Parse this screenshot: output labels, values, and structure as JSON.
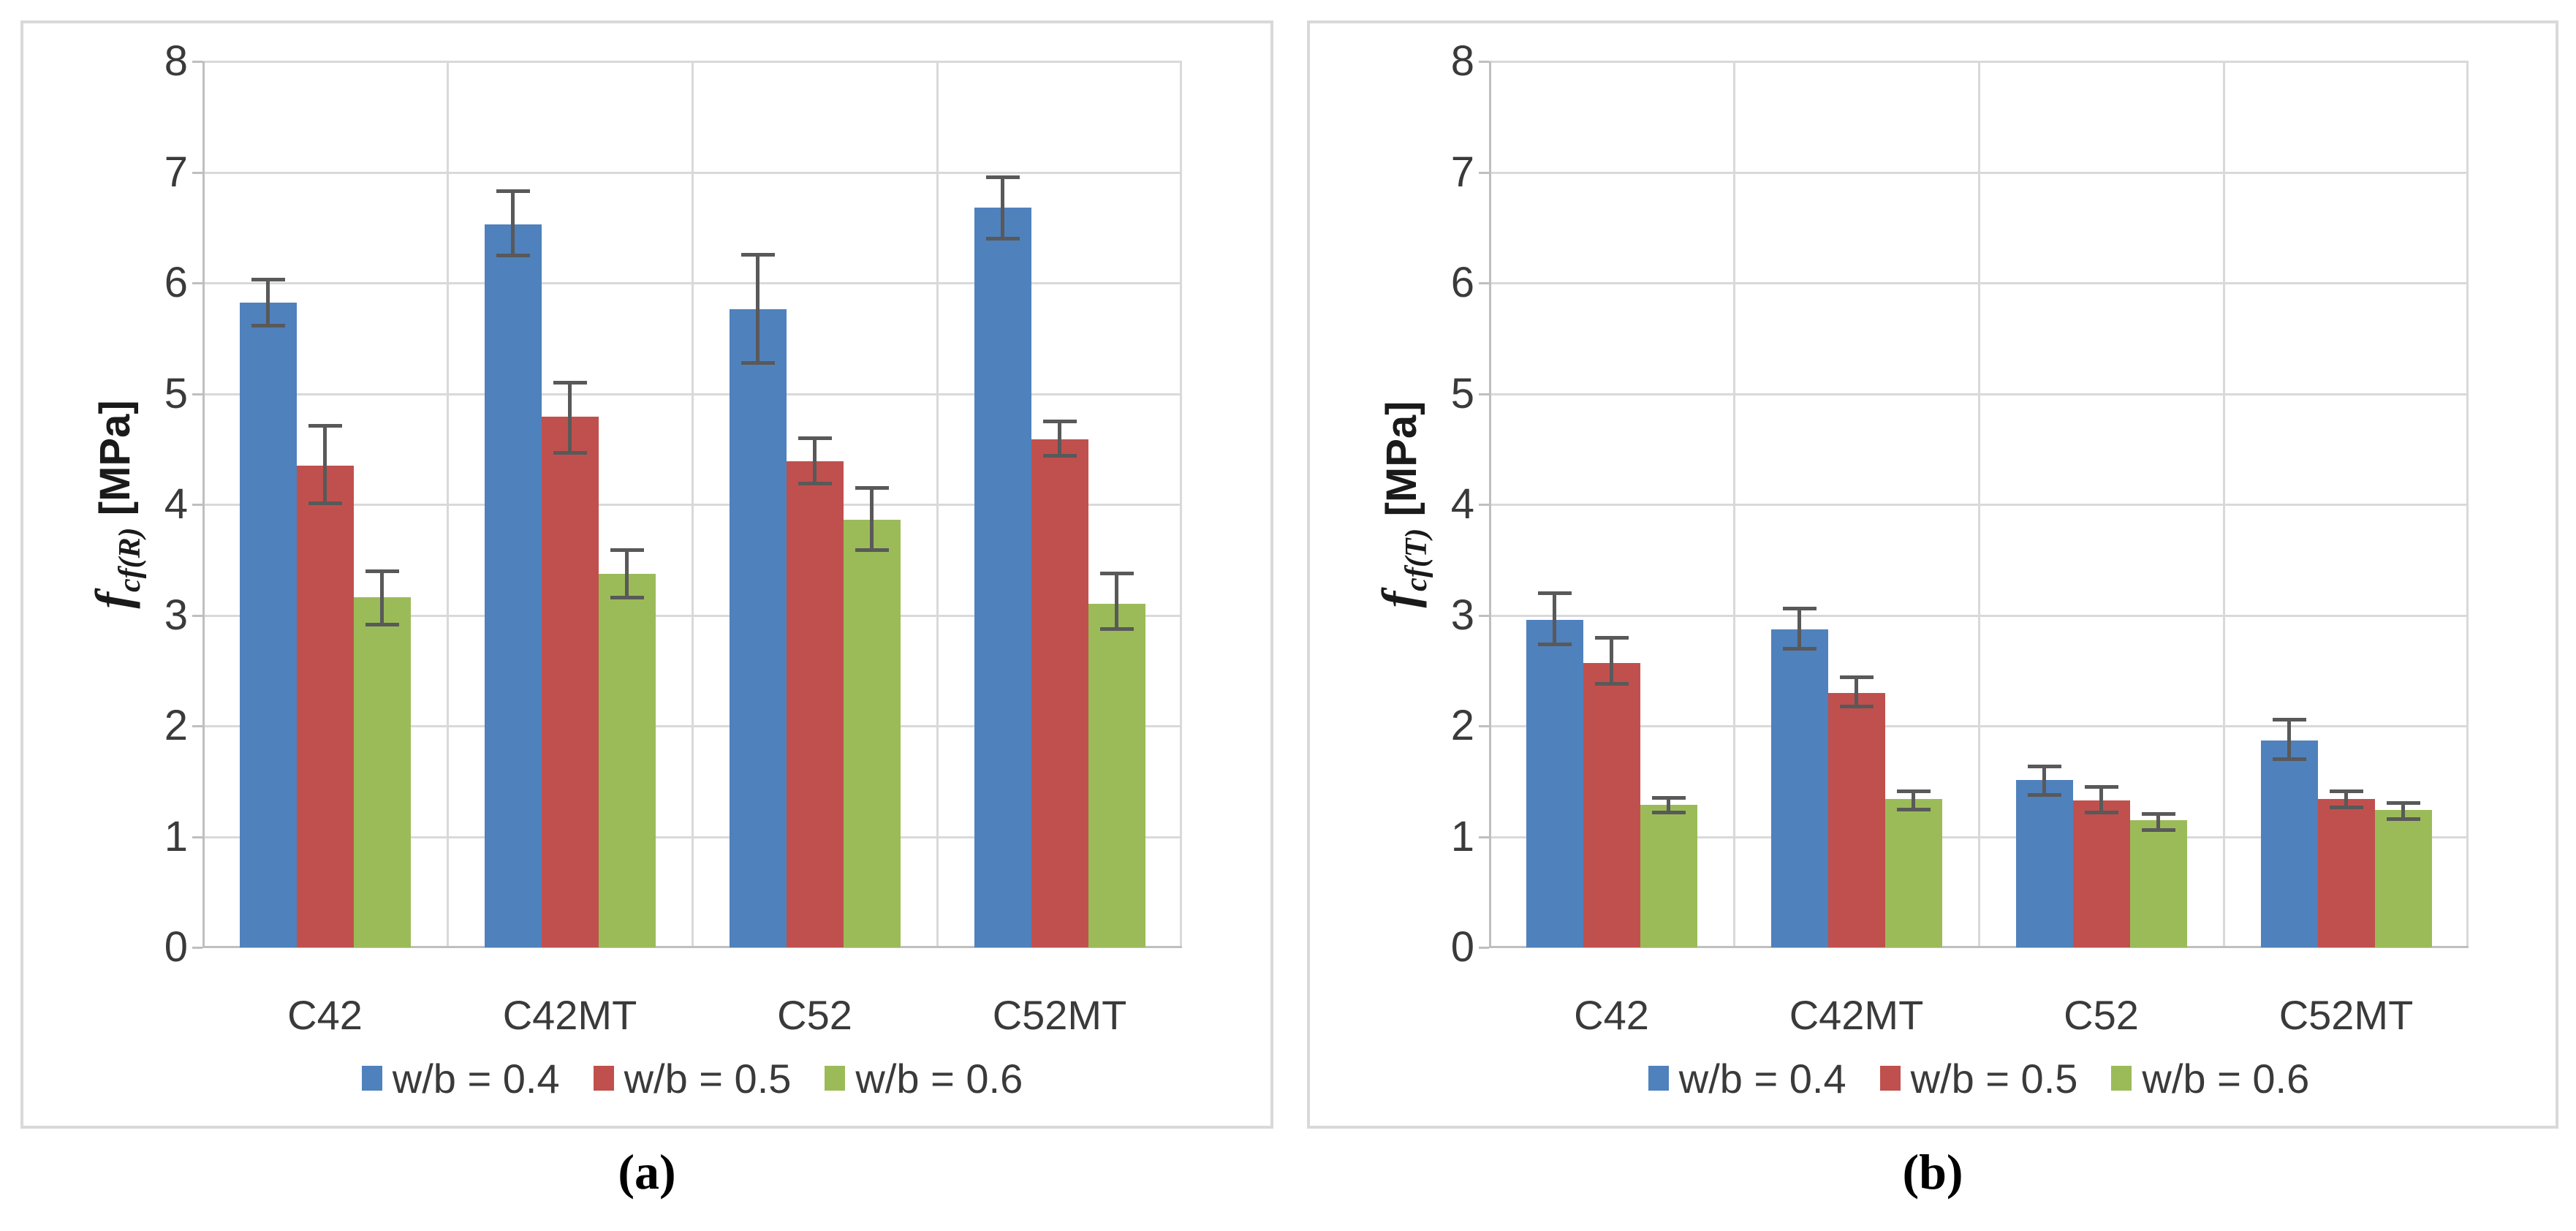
{
  "page": {
    "background": "#ffffff"
  },
  "colors": {
    "series_blue": "#4f81bd",
    "series_red": "#c0504d",
    "series_green": "#9bbb59",
    "error_bar": "#595959",
    "gridline": "#d9d9d9",
    "axis_line": "#bfbfbf",
    "text": "#3a3a3a",
    "panel_border": "#d9d9d9"
  },
  "chart_data": [
    {
      "type": "bar",
      "caption": "(a)",
      "ylabel_f": "f",
      "ylabel_sub": "cf(R)",
      "ylabel_unit": " [MPa]",
      "ylim": [
        0,
        8
      ],
      "ytick_step": 1,
      "yticks": [
        0,
        1,
        2,
        3,
        4,
        5,
        6,
        7,
        8
      ],
      "grid": true,
      "legend_position": "bottom",
      "categories": [
        "C42",
        "C42MT",
        "C52",
        "C52MT"
      ],
      "series": [
        {
          "name": "w/b = 0.4",
          "color": "#4f81bd",
          "values": [
            5.82,
            6.53,
            5.76,
            6.68
          ],
          "err_low": [
            5.62,
            6.25,
            5.28,
            6.4
          ],
          "err_high": [
            6.03,
            6.83,
            6.26,
            6.96
          ]
        },
        {
          "name": "w/b = 0.5",
          "color": "#c0504d",
          "values": [
            4.35,
            4.79,
            4.39,
            4.59
          ],
          "err_low": [
            4.01,
            4.47,
            4.19,
            4.44
          ],
          "err_high": [
            4.71,
            5.1,
            4.6,
            4.75
          ]
        },
        {
          "name": "w/b = 0.6",
          "color": "#9bbb59",
          "values": [
            3.16,
            3.37,
            3.86,
            3.1
          ],
          "err_low": [
            2.92,
            3.16,
            3.59,
            2.88
          ],
          "err_high": [
            3.4,
            3.59,
            4.15,
            3.38
          ]
        }
      ]
    },
    {
      "type": "bar",
      "caption": "(b)",
      "ylabel_f": "f",
      "ylabel_sub": "cf(T)",
      "ylabel_unit": " [MPa]",
      "ylim": [
        0,
        8
      ],
      "ytick_step": 1,
      "yticks": [
        0,
        1,
        2,
        3,
        4,
        5,
        6,
        7,
        8
      ],
      "grid": true,
      "legend_position": "bottom",
      "categories": [
        "C42",
        "C42MT",
        "C52",
        "C52MT"
      ],
      "series": [
        {
          "name": "w/b = 0.4",
          "color": "#4f81bd",
          "values": [
            2.96,
            2.87,
            1.51,
            1.87
          ],
          "err_low": [
            2.74,
            2.7,
            1.38,
            1.7
          ],
          "err_high": [
            3.2,
            3.06,
            1.64,
            2.06
          ]
        },
        {
          "name": "w/b = 0.5",
          "color": "#c0504d",
          "values": [
            2.57,
            2.3,
            1.33,
            1.34
          ],
          "err_low": [
            2.38,
            2.18,
            1.22,
            1.27
          ],
          "err_high": [
            2.8,
            2.44,
            1.45,
            1.41
          ]
        },
        {
          "name": "w/b = 0.6",
          "color": "#9bbb59",
          "values": [
            1.29,
            1.34,
            1.15,
            1.24
          ],
          "err_low": [
            1.22,
            1.25,
            1.06,
            1.16
          ],
          "err_high": [
            1.35,
            1.41,
            1.21,
            1.31
          ]
        }
      ]
    }
  ]
}
